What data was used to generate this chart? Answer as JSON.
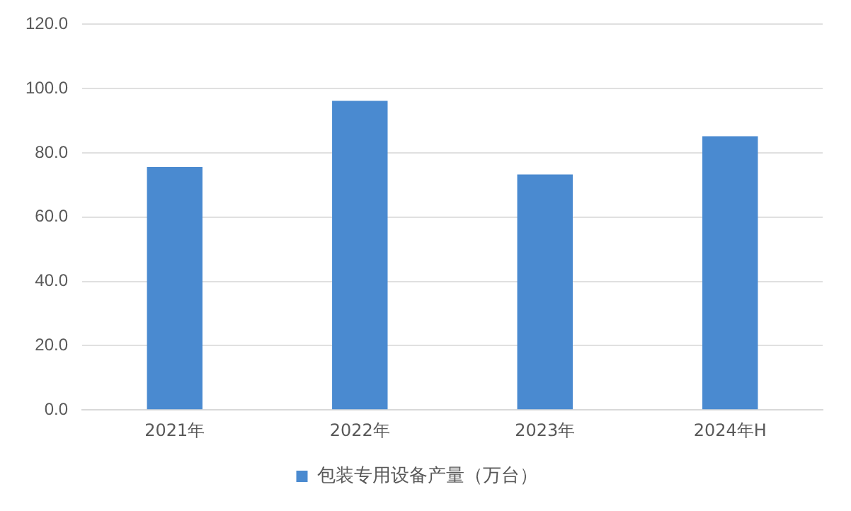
{
  "chart_data": {
    "type": "bar",
    "categories": [
      "2021年",
      "2022年",
      "2023年",
      "2024年H"
    ],
    "series": [
      {
        "name": "包装专用设备产量（万台）",
        "color": "#4a8ad0",
        "values": [
          75.6,
          96.2,
          73.3,
          85.2
        ]
      }
    ],
    "ylim": [
      0,
      120
    ],
    "yticks": [
      {
        "value": 0,
        "label": "0.0"
      },
      {
        "value": 20,
        "label": "20.0"
      },
      {
        "value": 40,
        "label": "40.0"
      },
      {
        "value": 60,
        "label": "60.0"
      },
      {
        "value": 80,
        "label": "80.0"
      },
      {
        "value": 100,
        "label": "100.0"
      },
      {
        "value": 120,
        "label": "120.0"
      }
    ],
    "grid": "y",
    "legend": "bottom"
  }
}
